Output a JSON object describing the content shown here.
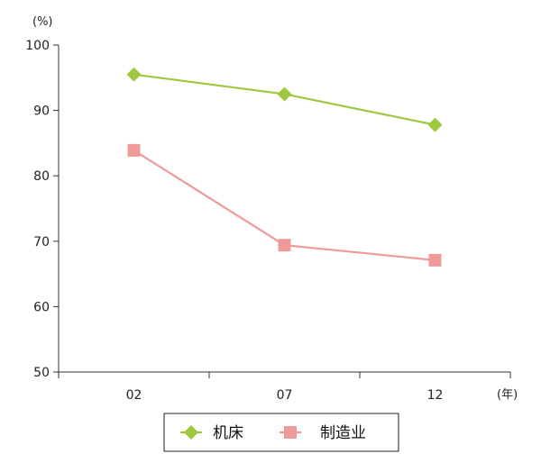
{
  "chart_data": {
    "type": "line",
    "title": "",
    "xlabel": "",
    "ylabel": "",
    "y_unit": "(%)",
    "x_unit": "(年)",
    "categories": [
      "02",
      "07",
      "12"
    ],
    "ylim": [
      50,
      100
    ],
    "yticks": [
      "50",
      "60",
      "70",
      "80",
      "90",
      "100"
    ],
    "grid": false,
    "legend_position": "bottom",
    "series": [
      {
        "name": "机床",
        "values": [
          95.5,
          92.5,
          87.8
        ],
        "color": "#9dc83f",
        "marker": "diamond"
      },
      {
        "name": "制造业",
        "values": [
          83.9,
          69.4,
          67.1
        ],
        "color": "#ef9a9a",
        "marker": "square"
      }
    ]
  }
}
